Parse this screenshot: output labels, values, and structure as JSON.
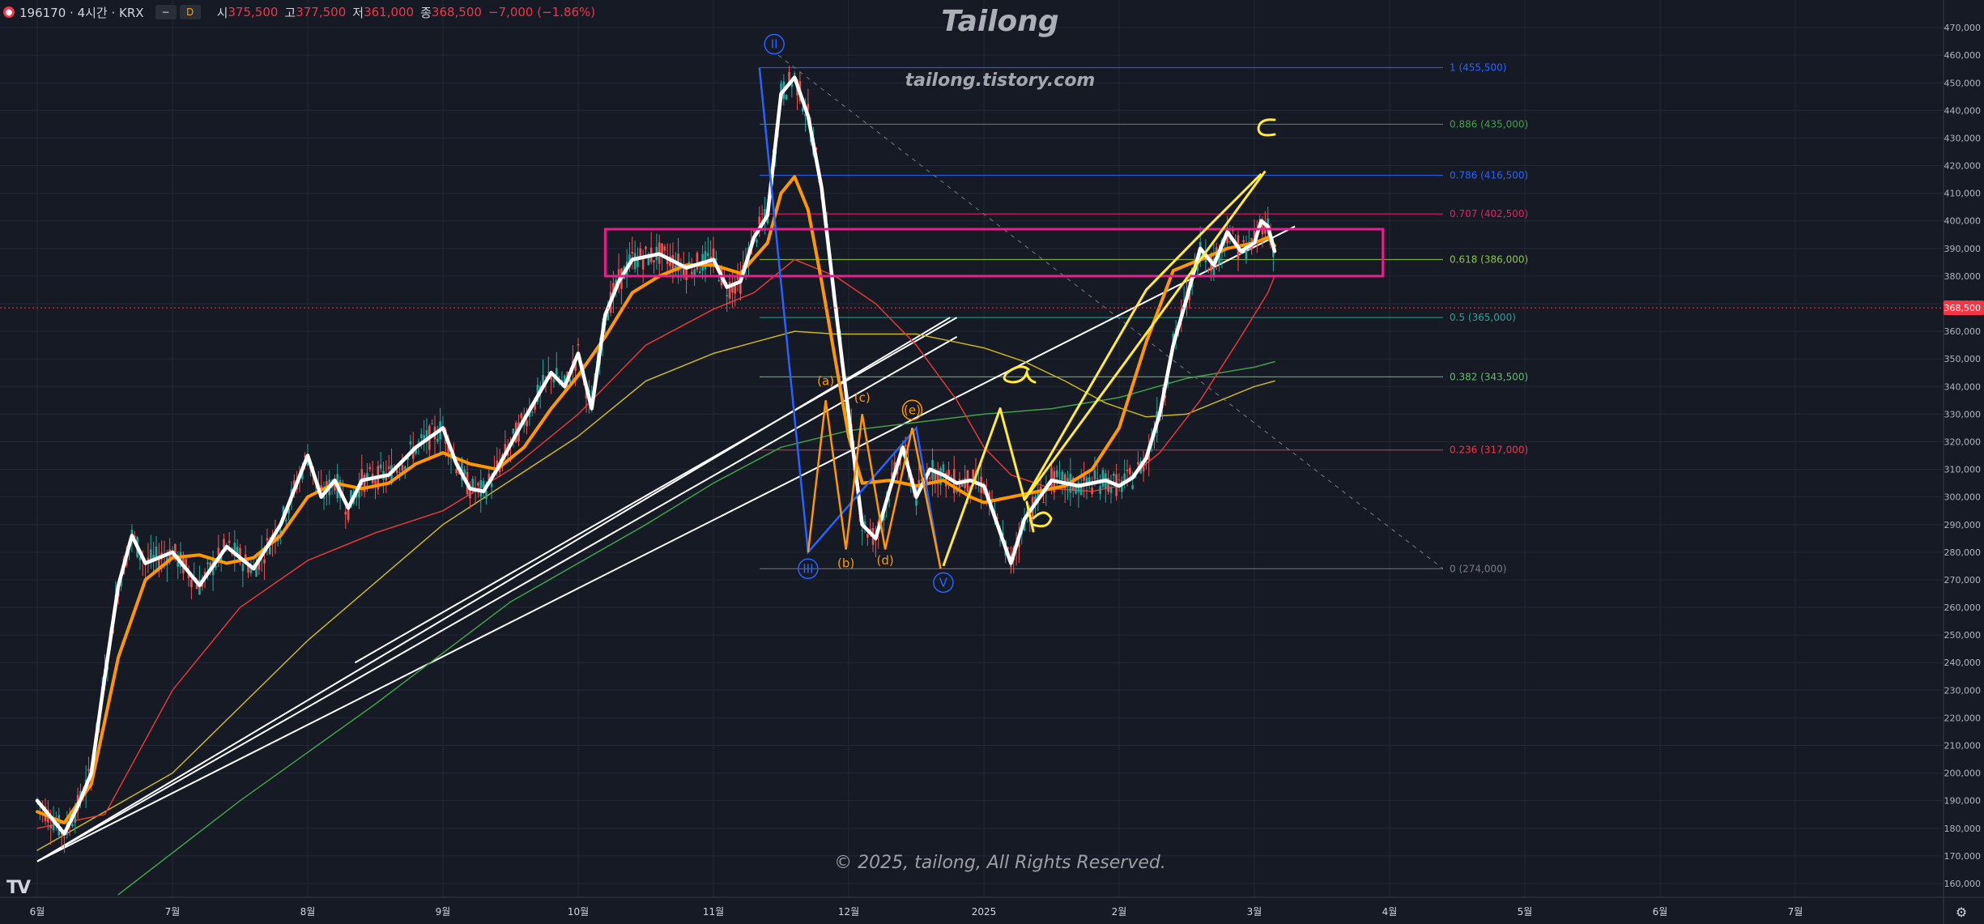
{
  "header": {
    "symbol": "196170 · 4시간 · KRX",
    "btn_minus": "−",
    "btn_d": "D",
    "o_label": "시",
    "o_val": "375,500",
    "h_label": "고",
    "h_val": "377,500",
    "l_label": "저",
    "l_val": "361,000",
    "c_label": "종",
    "c_val": "368,500",
    "change": "−7,000 (−1.86%)"
  },
  "watermark": {
    "title": "Tailong",
    "url": "tailong.tistory.com",
    "copyright": "© 2025, tailong, All Rights Reserved."
  },
  "colors": {
    "background": "#161a25",
    "price": "#ffffff",
    "ma_fast": "#ff9800",
    "ma_red": "#e53935",
    "ma_yellow": "#c9b52a",
    "ma_green": "#43a047",
    "wave_blue": "#2962ff",
    "wave_orange": "#ff9800",
    "hand_yellow": "#ffeb3b",
    "box": "#e91e8c",
    "price_tag": "#f23645"
  },
  "chart_data": {
    "type": "line",
    "title": "",
    "xlabel": "",
    "ylabel": "",
    "ylim": [
      155000,
      480000
    ],
    "grid": true,
    "y_ticks": [
      160000,
      170000,
      180000,
      190000,
      200000,
      210000,
      220000,
      230000,
      240000,
      250000,
      260000,
      270000,
      280000,
      290000,
      300000,
      310000,
      320000,
      330000,
      340000,
      350000,
      360000,
      370000,
      380000,
      390000,
      400000,
      410000,
      420000,
      430000,
      440000,
      450000,
      460000,
      470000
    ],
    "y_tick_labels": [
      "160,000",
      "170,000",
      "180,000",
      "190,000",
      "200,000",
      "210,000",
      "220,000",
      "230,000",
      "240,000",
      "250,000",
      "260,000",
      "270,000",
      "280,000",
      "290,000",
      "300,000",
      "310,000",
      "320,000",
      "330,000",
      "340,000",
      "350,000",
      "360,000",
      "370,000",
      "380,000",
      "390,000",
      "400,000",
      "410,000",
      "420,000",
      "430,000",
      "440,000",
      "450,000",
      "460,000",
      "470,000"
    ],
    "x_ticks": [
      0,
      1,
      2,
      3,
      4,
      5,
      6,
      7,
      8,
      9,
      10,
      11,
      12,
      13
    ],
    "x_tick_labels": [
      "6월",
      "7월",
      "8월",
      "9월",
      "10월",
      "11월",
      "12월",
      "2025",
      "2월",
      "3월",
      "4월",
      "5월",
      "6월",
      "7월"
    ],
    "last_price": 368500,
    "last_price_label": "368,500",
    "series": [
      {
        "key": "price",
        "x": [
          0,
          0.1,
          0.2,
          0.3,
          0.4,
          0.5,
          0.6,
          0.7,
          0.8,
          1.0,
          1.2,
          1.4,
          1.6,
          1.8,
          2.0,
          2.1,
          2.2,
          2.3,
          2.4,
          2.6,
          2.8,
          3.0,
          3.1,
          3.2,
          3.3,
          3.4,
          3.6,
          3.8,
          3.9,
          4.0,
          4.1,
          4.2,
          4.3,
          4.4,
          4.6,
          4.8,
          5.0,
          5.1,
          5.2,
          5.3,
          5.4,
          5.5,
          5.6,
          5.7,
          5.8,
          5.9,
          6.0,
          6.1,
          6.2,
          6.3,
          6.4,
          6.5,
          6.6,
          6.7,
          6.8,
          6.9,
          7.0,
          7.1,
          7.2,
          7.3,
          7.5,
          7.7,
          7.9,
          8.0,
          8.1,
          8.2,
          8.3,
          8.4,
          8.5,
          8.6,
          8.7,
          8.8,
          8.9,
          9.0,
          9.05,
          9.1,
          9.15
        ],
        "y": [
          190000,
          184000,
          178000,
          188000,
          200000,
          235000,
          268000,
          286000,
          276000,
          280000,
          268000,
          282000,
          274000,
          290000,
          315000,
          300000,
          306000,
          296000,
          306000,
          308000,
          318000,
          325000,
          312000,
          303000,
          302000,
          310000,
          328000,
          345000,
          340000,
          352000,
          332000,
          366000,
          378000,
          386000,
          388000,
          383000,
          386000,
          376000,
          378000,
          394000,
          402000,
          446000,
          452000,
          438000,
          412000,
          370000,
          330000,
          290000,
          285000,
          302000,
          318000,
          300000,
          310000,
          308000,
          305000,
          306000,
          304000,
          290000,
          276000,
          292000,
          306000,
          304000,
          306000,
          304000,
          307000,
          314000,
          330000,
          355000,
          372000,
          390000,
          384000,
          396000,
          389000,
          392000,
          400000,
          398000,
          389000
        ]
      },
      {
        "key": "ma_fast",
        "x": [
          0,
          0.2,
          0.4,
          0.6,
          0.8,
          1.0,
          1.2,
          1.4,
          1.6,
          1.8,
          2.0,
          2.2,
          2.4,
          2.6,
          2.8,
          3.0,
          3.2,
          3.4,
          3.6,
          3.8,
          4.0,
          4.2,
          4.4,
          4.6,
          4.8,
          5.0,
          5.2,
          5.4,
          5.5,
          5.6,
          5.7,
          5.8,
          5.9,
          6.0,
          6.1,
          6.3,
          6.5,
          6.7,
          6.9,
          7.0,
          7.2,
          7.4,
          7.6,
          7.8,
          8.0,
          8.2,
          8.4,
          8.6,
          8.8,
          9.0,
          9.1,
          9.15
        ],
        "y": [
          186000,
          182000,
          196000,
          242000,
          270000,
          278000,
          279000,
          276000,
          278000,
          286000,
          300000,
          305000,
          303000,
          305000,
          312000,
          316000,
          312000,
          310000,
          318000,
          332000,
          344000,
          358000,
          374000,
          380000,
          384000,
          384000,
          381000,
          392000,
          410000,
          416000,
          404000,
          378000,
          350000,
          322000,
          305000,
          306000,
          304000,
          306000,
          300000,
          298000,
          300000,
          302000,
          304000,
          310000,
          325000,
          356000,
          382000,
          386000,
          390000,
          392000,
          394000,
          391000
        ]
      },
      {
        "key": "ma_red",
        "x": [
          0,
          0.5,
          1.0,
          1.5,
          2.0,
          2.5,
          3.0,
          3.5,
          4.0,
          4.5,
          5.0,
          5.3,
          5.6,
          5.9,
          6.2,
          6.5,
          6.8,
          7.0,
          7.2,
          7.5,
          7.8,
          8.0,
          8.3,
          8.6,
          8.9,
          9.1,
          9.15
        ],
        "y": [
          180000,
          185000,
          230000,
          260000,
          277000,
          287000,
          295000,
          310000,
          330000,
          355000,
          368000,
          374000,
          386000,
          380000,
          370000,
          355000,
          335000,
          318000,
          308000,
          303000,
          302000,
          304000,
          316000,
          335000,
          358000,
          374000,
          380000
        ]
      },
      {
        "key": "ma_yellow",
        "x": [
          0,
          1.0,
          2.0,
          3.0,
          4.0,
          4.5,
          5.0,
          5.3,
          5.6,
          5.9,
          6.2,
          6.5,
          6.8,
          7.0,
          7.3,
          7.6,
          7.9,
          8.2,
          8.5,
          8.8,
          9.0,
          9.15
        ],
        "y": [
          172000,
          200000,
          248000,
          290000,
          322000,
          342000,
          352000,
          356000,
          360000,
          359000,
          359000,
          359000,
          356000,
          354000,
          349000,
          342000,
          334000,
          329000,
          330000,
          336000,
          340000,
          342000
        ]
      },
      {
        "key": "ma_green",
        "x": [
          0.6,
          1.5,
          2.5,
          3.5,
          4.5,
          5.0,
          5.5,
          6.0,
          6.5,
          7.0,
          7.5,
          8.0,
          8.5,
          9.0,
          9.15
        ],
        "y": [
          156000,
          190000,
          225000,
          262000,
          290000,
          305000,
          318000,
          324000,
          327000,
          330000,
          332000,
          336000,
          343000,
          347000,
          349000
        ]
      }
    ],
    "fib_levels": [
      {
        "ratio": 1,
        "value": 455500,
        "label": "1 (455,500)",
        "color": "#2962ff"
      },
      {
        "ratio": 0.886,
        "value": 435000,
        "label": "0.886 (435,000)",
        "color": "#43a047"
      },
      {
        "ratio": 0.786,
        "value": 416500,
        "label": "0.786 (416,500)",
        "color": "#2962ff"
      },
      {
        "ratio": 0.707,
        "value": 402500,
        "label": "0.707 (402,500)",
        "color": "#e91e63"
      },
      {
        "ratio": 0.618,
        "value": 386000,
        "label": "0.618 (386,000)",
        "color": "#8bc34a"
      },
      {
        "ratio": 0.5,
        "value": 365000,
        "label": "0.5 (365,000)",
        "color": "#26a69a"
      },
      {
        "ratio": 0.382,
        "value": 343500,
        "label": "0.382 (343,500)",
        "color": "#66bb6a"
      },
      {
        "ratio": 0.236,
        "value": 317000,
        "label": "0.236 (317,000)",
        "color": "#f23645"
      },
      {
        "ratio": 0,
        "value": 274000,
        "label": "0 (274,000)",
        "color": "#787b86"
      }
    ],
    "zone": {
      "x0": 4.2,
      "x1": 9.95,
      "y_low": 380000,
      "y_high": 397000
    },
    "wave_labels": [
      {
        "text": "II",
        "x": 5.45,
        "y": 464000,
        "color": "#2962ff",
        "circle": true
      },
      {
        "text": "III",
        "x": 5.7,
        "y": 274000,
        "color": "#2962ff",
        "circle": true
      },
      {
        "text": "V",
        "x": 6.7,
        "y": 269000,
        "color": "#2962ff",
        "circle": true
      },
      {
        "text": "(e)",
        "x": 6.47,
        "y": 331500,
        "color": "#ff9800",
        "circle": true
      },
      {
        "text": "(a)",
        "x": 5.83,
        "y": 342000,
        "color": "#ff9800",
        "circle": false
      },
      {
        "text": "(c)",
        "x": 6.1,
        "y": 336000,
        "color": "#ff9800",
        "circle": false
      },
      {
        "text": "(b)",
        "x": 5.98,
        "y": 276000,
        "color": "#ff9800",
        "circle": false
      },
      {
        "text": "(d)",
        "x": 6.27,
        "y": 277000,
        "color": "#ff9800",
        "circle": false
      }
    ]
  }
}
